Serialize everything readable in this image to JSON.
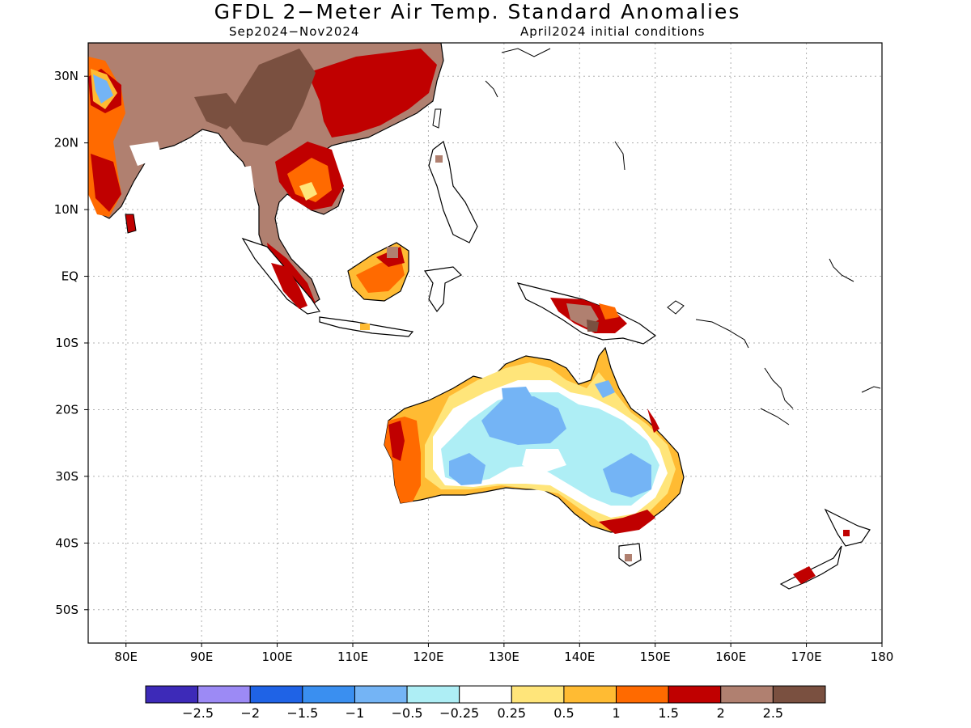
{
  "title": "GFDL 2−Meter Air Temp. Standard Anomalies",
  "subtitle_left": "Sep2024−Nov2024",
  "subtitle_right": "April2024 initial conditions",
  "lon_ticks": [
    "80E",
    "90E",
    "100E",
    "110E",
    "120E",
    "130E",
    "140E",
    "150E",
    "160E",
    "170E",
    "180"
  ],
  "lat_ticks": [
    "30N",
    "20N",
    "10N",
    "EQ",
    "10S",
    "20S",
    "30S",
    "40S",
    "50S"
  ],
  "colorbar": {
    "colors": [
      "#3d2ab8",
      "#9c8af5",
      "#1f63e6",
      "#3a8ff0",
      "#74b4f5",
      "#aeeef5",
      "#ffffff",
      "#ffe57a",
      "#ffbb33",
      "#ff6a00",
      "#c00000",
      "#b08070",
      "#7a5040"
    ],
    "labels": [
      "−2.5",
      "−2",
      "−1.5",
      "−1",
      "−0.5",
      "−0.25",
      "0.25",
      "0.5",
      "1",
      "1.5",
      "2",
      "2.5"
    ]
  }
}
